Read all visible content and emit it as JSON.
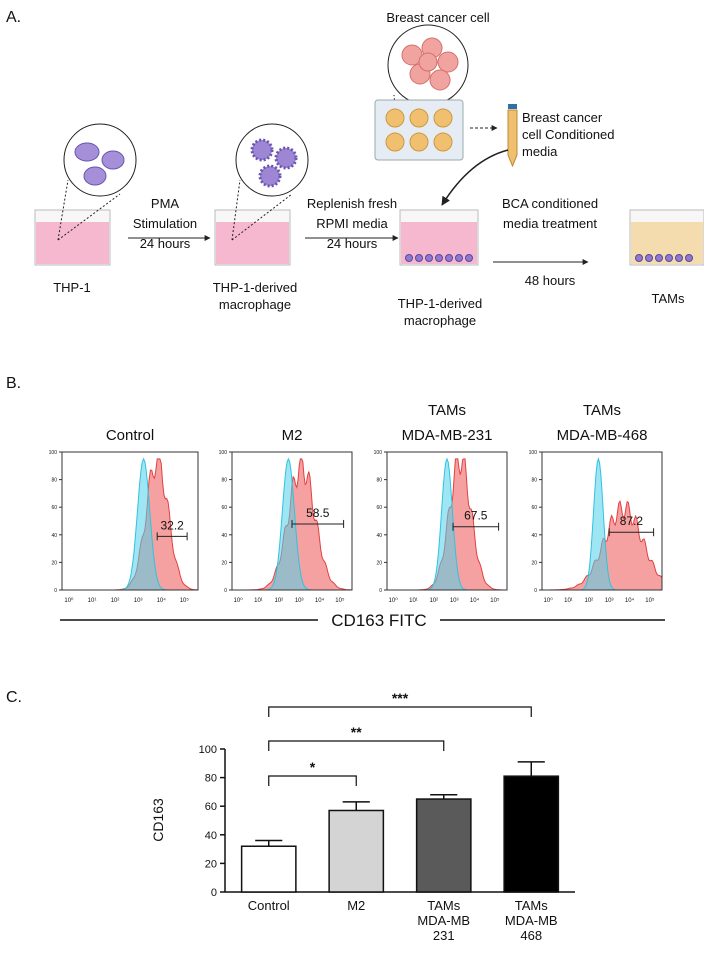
{
  "panel_a": {
    "label": "A.",
    "source_cell": "Breast cancer cell",
    "conditioned_media": [
      "Breast cancer",
      "cell Conditioned",
      "media"
    ],
    "cells": [
      [
        "THP-1"
      ],
      [
        "THP-1-derived",
        "macrophage"
      ],
      [
        "THP-1-derived",
        "macrophage"
      ],
      [
        "TAMs"
      ]
    ],
    "arrows": [
      [
        "PMA",
        "Stimulation",
        "24 hours"
      ],
      [
        "Replenish fresh",
        "RPMI media",
        "24 hours"
      ],
      [
        "BCA conditioned",
        "media treatment",
        "48 hours"
      ]
    ]
  },
  "panel_b": {
    "label": "B.",
    "xlabel": "CD163 FITC",
    "yticks": [
      0,
      20,
      40,
      60,
      80,
      100
    ],
    "xticks": [
      "10⁰",
      "10¹",
      "10²",
      "10³",
      "10⁴",
      "10⁵"
    ],
    "plots": [
      {
        "title": [
          "Control"
        ],
        "gate_value": 32.2
      },
      {
        "title": [
          "M2"
        ],
        "gate_value": 58.5
      },
      {
        "title": [
          "TAMs",
          "MDA-MB-231"
        ],
        "gate_value": 67.5
      },
      {
        "title": [
          "TAMs",
          "MDA-MB-468"
        ],
        "gate_value": 87.2
      }
    ]
  },
  "panel_c": {
    "label": "C."
  },
  "chart_data": {
    "type": "bar",
    "ylabel": "CD163",
    "categories": [
      [
        "Control"
      ],
      [
        "M2"
      ],
      [
        "TAMs",
        "MDA-MB",
        "231"
      ],
      [
        "TAMs",
        "MDA-MB",
        "468"
      ]
    ],
    "values": [
      32,
      57,
      65,
      81
    ],
    "errors": [
      4,
      6,
      3,
      10
    ],
    "colors": [
      "#ffffff",
      "#d4d4d4",
      "#5a5a5a",
      "#000000"
    ],
    "significance": [
      null,
      "*",
      "**",
      "***"
    ],
    "ylim": [
      0,
      100
    ],
    "yticks": [
      0,
      20,
      40,
      60,
      80,
      100
    ]
  }
}
